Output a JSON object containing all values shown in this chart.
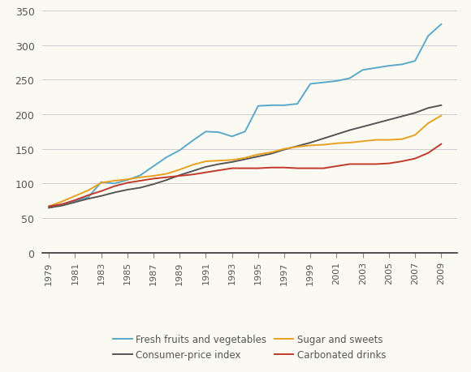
{
  "years": [
    1979,
    1980,
    1981,
    1982,
    1983,
    1984,
    1985,
    1986,
    1987,
    1988,
    1989,
    1990,
    1991,
    1992,
    1993,
    1994,
    1995,
    1996,
    1997,
    1998,
    1999,
    2000,
    2001,
    2002,
    2003,
    2004,
    2005,
    2006,
    2007,
    2008,
    2009
  ],
  "fresh_fruits_veg": [
    65,
    70,
    75,
    80,
    102,
    100,
    105,
    112,
    125,
    138,
    148,
    162,
    175,
    174,
    168,
    175,
    212,
    213,
    213,
    215,
    244,
    246,
    248,
    252,
    264,
    267,
    270,
    272,
    277,
    313,
    330
  ],
  "consumer_price": [
    65,
    68,
    73,
    78,
    82,
    87,
    91,
    94,
    99,
    105,
    112,
    118,
    124,
    128,
    131,
    135,
    139,
    143,
    149,
    154,
    159,
    165,
    171,
    177,
    182,
    187,
    192,
    197,
    202,
    209,
    213
  ],
  "sugar_sweets": [
    67,
    74,
    82,
    90,
    101,
    104,
    106,
    109,
    111,
    114,
    120,
    127,
    132,
    133,
    134,
    137,
    142,
    145,
    150,
    153,
    155,
    156,
    158,
    159,
    161,
    163,
    163,
    164,
    170,
    187,
    198
  ],
  "carbonated_drinks": [
    67,
    70,
    76,
    83,
    89,
    96,
    101,
    104,
    107,
    109,
    111,
    113,
    116,
    119,
    122,
    122,
    122,
    123,
    123,
    122,
    122,
    122,
    125,
    128,
    128,
    128,
    129,
    132,
    136,
    144,
    157
  ],
  "fresh_fruits_color": "#5BA8C8",
  "consumer_price_color": "#555555",
  "sugar_sweets_color": "#E8A020",
  "carbonated_drinks_color": "#C0392B",
  "background_color": "#FAFAF2",
  "grid_color": "#CCCCCC",
  "ylim": [
    0,
    350
  ],
  "yticks": [
    0,
    50,
    100,
    150,
    200,
    250,
    300,
    350
  ],
  "xtick_labels": [
    "1979",
    "1981",
    "1983",
    "1985",
    "1987",
    "1989",
    "1991",
    "1993",
    "1995",
    "1997",
    "1999",
    "2001",
    "2003",
    "2005",
    "2007",
    "2009"
  ],
  "legend_labels": [
    "Fresh fruits and vegetables",
    "Consumer-price index",
    "Sugar and sweets",
    "Carbonated drinks"
  ],
  "line_width": 1.4
}
